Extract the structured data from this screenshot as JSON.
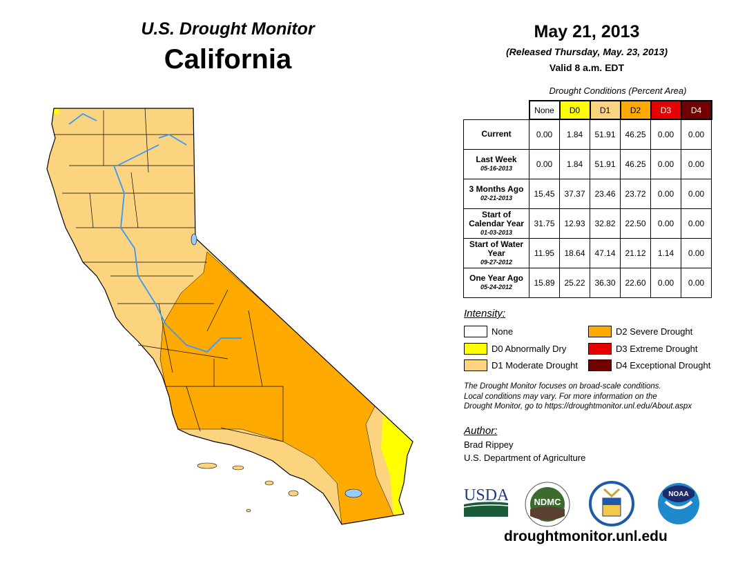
{
  "header": {
    "title_line1": "U.S. Drought Monitor",
    "title_line2": "California",
    "date": "May 21, 2013",
    "released": "(Released Thursday, May. 23, 2013)",
    "valid": "Valid 8 a.m. EDT"
  },
  "table": {
    "caption": "Drought Conditions (Percent Area)",
    "columns": [
      "None",
      "D0",
      "D1",
      "D2",
      "D3",
      "D4"
    ],
    "column_colors": [
      "#FFFFFF",
      "#FFFF00",
      "#FCD37F",
      "#FFAA00",
      "#E60000",
      "#730000"
    ],
    "rows": [
      {
        "label": "Current",
        "date": "",
        "values": [
          "0.00",
          "1.84",
          "51.91",
          "46.25",
          "0.00",
          "0.00"
        ]
      },
      {
        "label": "Last Week",
        "date": "05-16-2013",
        "values": [
          "0.00",
          "1.84",
          "51.91",
          "46.25",
          "0.00",
          "0.00"
        ]
      },
      {
        "label": "3 Months Ago",
        "date": "02-21-2013",
        "values": [
          "15.45",
          "37.37",
          "23.46",
          "23.72",
          "0.00",
          "0.00"
        ]
      },
      {
        "label": "Start of Calendar Year",
        "date": "01-03-2013",
        "values": [
          "31.75",
          "12.93",
          "32.82",
          "22.50",
          "0.00",
          "0.00"
        ]
      },
      {
        "label": "Start of Water Year",
        "date": "09-27-2012",
        "values": [
          "11.95",
          "18.64",
          "47.14",
          "21.12",
          "1.14",
          "0.00"
        ]
      },
      {
        "label": "One Year Ago",
        "date": "05-24-2012",
        "values": [
          "15.89",
          "25.22",
          "36.30",
          "22.60",
          "0.00",
          "0.00"
        ]
      }
    ]
  },
  "legend": {
    "title": "Intensity:",
    "items": [
      {
        "label": "None",
        "color": "#FFFFFF"
      },
      {
        "label": "D0 Abnormally Dry",
        "color": "#FFFF00"
      },
      {
        "label": "D1 Moderate Drought",
        "color": "#FCD37F"
      },
      {
        "label": "D2 Severe Drought",
        "color": "#FFAA00"
      },
      {
        "label": "D3 Extreme Drought",
        "color": "#E60000"
      },
      {
        "label": "D4 Exceptional Drought",
        "color": "#730000"
      }
    ]
  },
  "note": [
    "The Drought Monitor focuses on broad-scale conditions.",
    "Local conditions may vary. For more information on the",
    "Drought Monitor, go to https://droughtmonitor.unl.edu/About.aspx"
  ],
  "author": {
    "label": "Author:",
    "name": "Brad Rippey",
    "org": "U.S. Department of Agriculture"
  },
  "logos": {
    "usda": "USDA",
    "ndmc": "NDMC",
    "noaa": "NOAA"
  },
  "url": "droughtmonitor.unl.edu"
}
